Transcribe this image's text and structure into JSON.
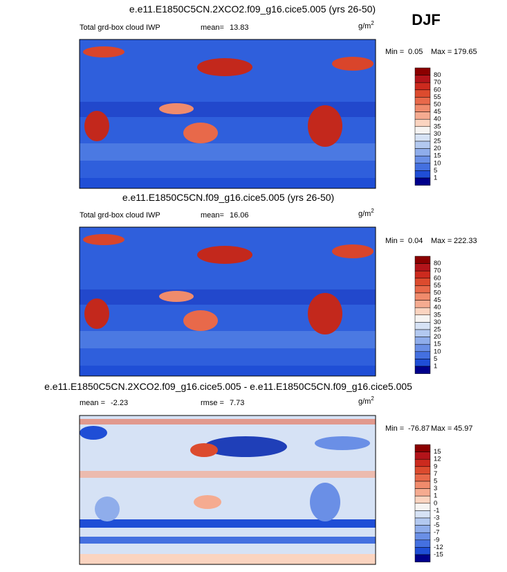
{
  "header": {
    "season": "DJF"
  },
  "panels": [
    {
      "title": "e.e11.E1850C5CN.2XCO2.f09_g16.cice5.005 (yrs 26-50)",
      "left_label": "Total grd-box cloud IWP",
      "mean_label": "mean=",
      "mean": 13.83,
      "units": "g/m",
      "units_exp": "2",
      "min_label": "Min =",
      "min": 0.05,
      "max_label": "Max =",
      "max": 179.65,
      "colorbar": {
        "labels": [
          80,
          70,
          60,
          55,
          50,
          45,
          40,
          35,
          30,
          25,
          20,
          15,
          10,
          5,
          1
        ],
        "colors": [
          "#8b0000",
          "#b3141a",
          "#cc2a1e",
          "#dc4b2e",
          "#e8694a",
          "#f08b6c",
          "#f5ab90",
          "#fbd4c0",
          "#f6f4f2",
          "#d6e2f5",
          "#b3c9f0",
          "#8fadeb",
          "#6a8fe6",
          "#4470e0",
          "#1f4ed6",
          "#00008b"
        ]
      }
    },
    {
      "title": "e.e11.E1850C5CN.f09_g16.cice5.005 (yrs 26-50)",
      "left_label": "Total grd-box cloud IWP",
      "mean_label": "mean=",
      "mean": 16.06,
      "units": "g/m",
      "units_exp": "2",
      "min_label": "Min =",
      "min": 0.04,
      "max_label": "Max =",
      "max": 222.33,
      "colorbar": {
        "labels": [
          80,
          70,
          60,
          55,
          50,
          45,
          40,
          35,
          30,
          25,
          20,
          15,
          10,
          5,
          1
        ],
        "colors": [
          "#8b0000",
          "#b3141a",
          "#cc2a1e",
          "#dc4b2e",
          "#e8694a",
          "#f08b6c",
          "#f5ab90",
          "#fbd4c0",
          "#f6f4f2",
          "#d6e2f5",
          "#b3c9f0",
          "#8fadeb",
          "#6a8fe6",
          "#4470e0",
          "#1f4ed6",
          "#00008b"
        ]
      }
    },
    {
      "title": "e.e11.E1850C5CN.2XCO2.f09_g16.cice5.005 - e.e11.E1850C5CN.f09_g16.cice5.005",
      "left_label": "mean =",
      "mean_label": "rmse =",
      "left_value": -2.23,
      "mean": 7.73,
      "units": "g/m",
      "units_exp": "2",
      "min_label": "Min =",
      "min": -76.87,
      "max_label": "Max =",
      "max": 45.97,
      "colorbar": {
        "labels": [
          15,
          12,
          9,
          7,
          5,
          3,
          1,
          0,
          -1,
          -3,
          -5,
          -7,
          -9,
          -12,
          -15
        ],
        "colors": [
          "#8b0000",
          "#b3141a",
          "#cc2a1e",
          "#dc4b2e",
          "#e8694a",
          "#f08b6c",
          "#f5ab90",
          "#fbd4c0",
          "#f6f4f2",
          "#d6e2f5",
          "#b3c9f0",
          "#8fadeb",
          "#6a8fe6",
          "#4470e0",
          "#1f4ed6",
          "#00008b"
        ]
      }
    }
  ]
}
